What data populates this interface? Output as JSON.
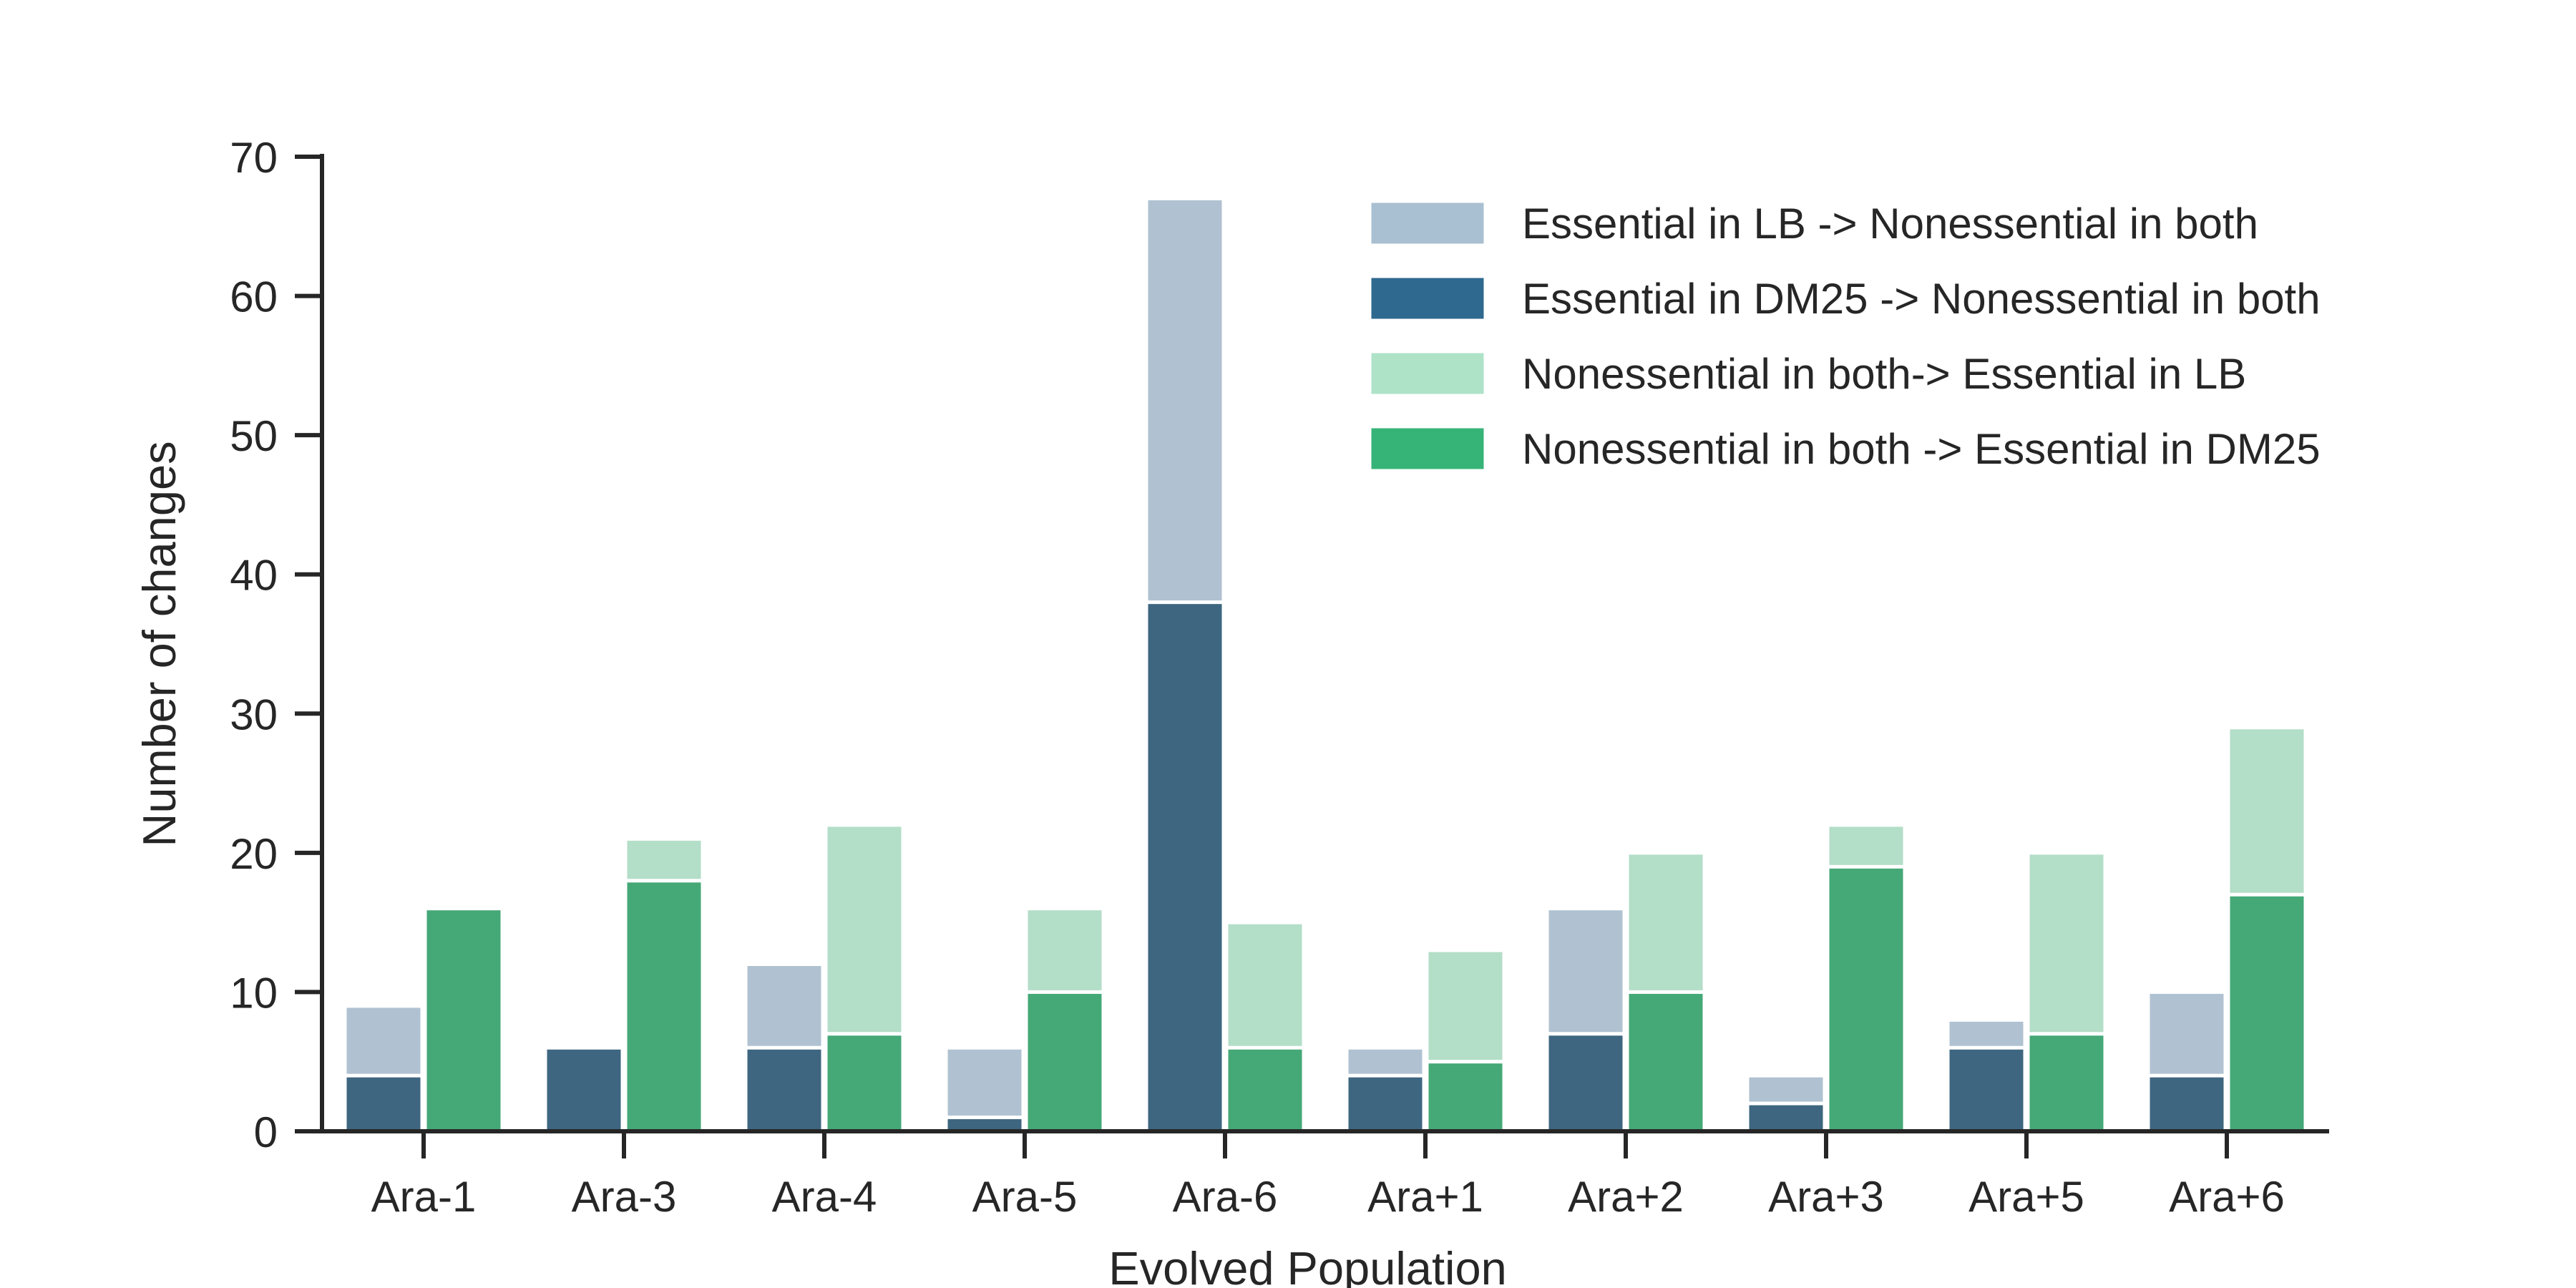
{
  "chart_data": {
    "type": "bar",
    "stacked": true,
    "grouped": true,
    "xlabel": "Evolved Population",
    "ylabel": "Number of changes",
    "ylim": [
      0,
      70
    ],
    "yticks": [
      0,
      10,
      20,
      30,
      40,
      50,
      60,
      70
    ],
    "grid": false,
    "legend_position": "top-right",
    "categories": [
      "Ara-1",
      "Ara-3",
      "Ara-4",
      "Ara-5",
      "Ara-6",
      "Ara+1",
      "Ara+2",
      "Ara+3",
      "Ara+5",
      "Ara+6"
    ],
    "series": [
      {
        "name": "Essential in LB -> Nonessential in both",
        "color": "#b0c2d1",
        "legend_color": "#a9c0d2",
        "group": "left",
        "layer": "total",
        "values": [
          9,
          6,
          12,
          6,
          67,
          6,
          16,
          4,
          8,
          10
        ]
      },
      {
        "name": "Essential in DM25 -> Nonessential in both",
        "color": "#3e6680",
        "legend_color": "#2f698f",
        "group": "left",
        "layer": "base",
        "values": [
          4,
          6,
          6,
          1,
          38,
          4,
          7,
          2,
          6,
          4
        ]
      },
      {
        "name": "Nonessential in both-> Essential in LB",
        "color": "#b3dec8",
        "legend_color": "#aee3c8",
        "group": "right",
        "layer": "total",
        "values": [
          16,
          21,
          22,
          16,
          15,
          13,
          20,
          22,
          20,
          29
        ]
      },
      {
        "name": "Nonessential in both -> Essential in DM25",
        "color": "#45a877",
        "legend_color": "#36b477",
        "group": "right",
        "layer": "base",
        "values": [
          16,
          18,
          7,
          10,
          6,
          5,
          10,
          19,
          7,
          17
        ]
      }
    ]
  }
}
